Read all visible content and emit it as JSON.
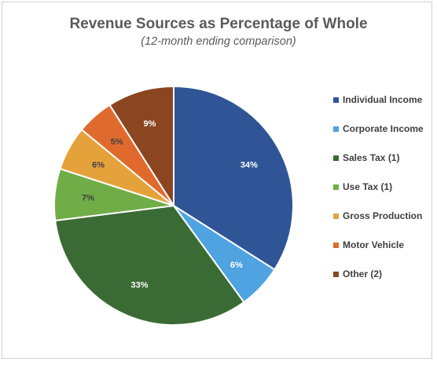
{
  "chart_data": {
    "type": "pie",
    "title": "Revenue Sources as Percentage of Whole",
    "subtitle": "(12-month ending comparison)",
    "categories": [
      "Individual Income",
      "Corporate Income",
      "Sales Tax (1)",
      "Use Tax (1)",
      "Gross Production",
      "Motor Vehicle",
      "Other (2)"
    ],
    "values": [
      34,
      6,
      33,
      7,
      6,
      5,
      9
    ],
    "data_labels": [
      "34%",
      "6%",
      "33%",
      "7%",
      "6%",
      "5%",
      "9%"
    ],
    "colors": [
      "#2f5597",
      "#4fa3e0",
      "#3a6b35",
      "#70ad47",
      "#e6a23a",
      "#e06a2e",
      "#8b4520"
    ],
    "label_colors": [
      "#ffffff",
      "#ffffff",
      "#ffffff",
      "#404040",
      "#404040",
      "#404040",
      "#ffffff"
    ],
    "legend_position": "right"
  }
}
